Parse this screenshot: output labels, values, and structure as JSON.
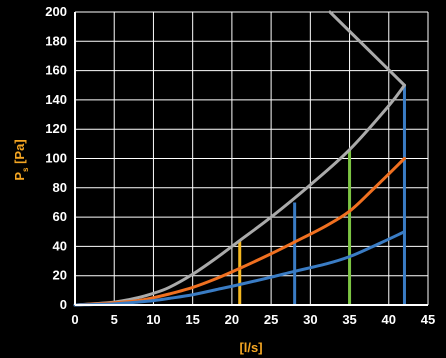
{
  "chart_data": {
    "type": "line",
    "xlabel": "[l/s]",
    "ylabel_main": "P",
    "ylabel_sub": "s",
    "ylabel_unit": " [Pa]",
    "xlim": [
      0,
      45
    ],
    "ylim": [
      0,
      200
    ],
    "x_ticks": [
      0,
      5,
      10,
      15,
      20,
      25,
      30,
      35,
      40,
      45
    ],
    "y_ticks": [
      0,
      20,
      40,
      60,
      80,
      100,
      120,
      140,
      160,
      180,
      200
    ],
    "grid": true,
    "series": [
      {
        "color": "#aaaaaa",
        "x": [
          0,
          5,
          8,
          10,
          12,
          15,
          18,
          21,
          25,
          30,
          35,
          40,
          42
        ],
        "y": [
          0,
          2,
          5,
          8,
          12,
          21,
          32,
          44,
          60,
          82,
          106,
          136,
          150
        ]
      },
      {
        "color": "#f07020",
        "x": [
          0,
          5,
          8,
          10,
          12,
          15,
          18,
          21,
          25,
          28,
          32,
          35,
          38,
          42
        ],
        "y": [
          0,
          1.5,
          3,
          5,
          7.5,
          12,
          18,
          25,
          35,
          43,
          54,
          64,
          79,
          100
        ]
      },
      {
        "color": "#3a7cc4",
        "x": [
          0,
          5,
          8,
          10,
          12,
          15,
          18,
          21,
          25,
          28,
          32,
          35,
          38,
          42
        ],
        "y": [
          0,
          0.8,
          2,
          3,
          4.5,
          7,
          10.5,
          14,
          19,
          23,
          28,
          33,
          40,
          50
        ]
      },
      {
        "color": "#aaaaaa",
        "x": [
          32.5,
          42
        ],
        "y": [
          200,
          150
        ]
      }
    ],
    "markers": [
      {
        "x": 21,
        "y": 44,
        "color": "#f5b820"
      },
      {
        "x": 28,
        "y": 70,
        "color": "#3a7cc4"
      },
      {
        "x": 35,
        "y": 106,
        "color": "#7cc443"
      },
      {
        "x": 42,
        "y": 150,
        "color": "#3a7cc4"
      }
    ]
  }
}
